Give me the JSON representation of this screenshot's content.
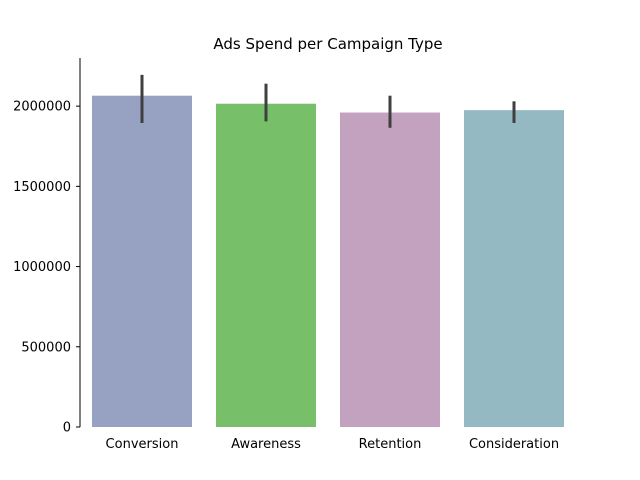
{
  "chart_data": {
    "type": "bar",
    "title": "Ads Spend per Campaign Type",
    "xlabel": "",
    "ylabel": "",
    "ylim": [
      0,
      2300000
    ],
    "yticks": [
      0,
      500000,
      1000000,
      1500000,
      2000000
    ],
    "ytick_labels": [
      "0",
      "500000",
      "1000000",
      "1500000",
      "2000000"
    ],
    "grid": false,
    "legend": "none",
    "categories": [
      "Conversion",
      "Awareness",
      "Retention",
      "Consideration"
    ],
    "values": [
      2065000,
      2015000,
      1960000,
      1975000
    ],
    "error_low": [
      1895000,
      1905000,
      1865000,
      1895000
    ],
    "error_high": [
      2195000,
      2140000,
      2065000,
      2030000
    ],
    "colors": [
      "#97a1c2",
      "#77bf69",
      "#c3a2bf",
      "#95b9c3"
    ],
    "error_color": "#3f3f3f"
  }
}
